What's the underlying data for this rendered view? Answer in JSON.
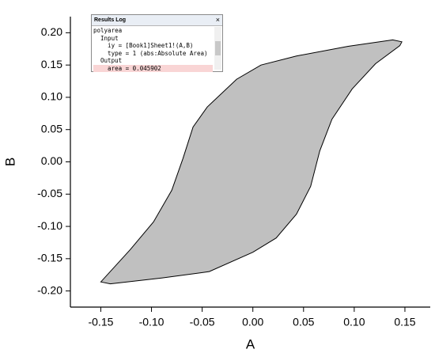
{
  "chart_data": {
    "type": "polygon",
    "x_label": "A",
    "y_label": "B",
    "x": [
      -0.15,
      -0.1406,
      -0.09,
      -0.043,
      0,
      0.023,
      0.043,
      0.057,
      0.066,
      0.078,
      0.098,
      0.121,
      0.145,
      0.147,
      0.138,
      0.094,
      0.043,
      0.008,
      -0.016,
      -0.045,
      -0.059,
      -0.069,
      -0.08,
      -0.098,
      -0.121
    ],
    "values": [
      -0.186,
      -0.189,
      -0.18,
      -0.17,
      -0.14,
      -0.118,
      -0.081,
      -0.038,
      0.017,
      0.066,
      0.113,
      0.152,
      0.18,
      0.186,
      0.189,
      0.179,
      0.164,
      0.15,
      0.128,
      0.085,
      0.054,
      0.005,
      -0.044,
      -0.093,
      -0.136
    ],
    "color": "#c0c0c0",
    "xlim": [
      -0.18,
      0.175
    ],
    "ylim": [
      -0.225,
      0.225
    ],
    "xticks": [
      -0.15,
      {
        "value": -0.1,
        "label": "-0.10"
      },
      -0.05,
      {
        "value": 0,
        "label": "0.00"
      },
      0.05,
      {
        "value": 0.1,
        "label": "0.10"
      },
      0.15
    ],
    "yticks": [
      {
        "value": -0.2,
        "label": "-0.20"
      },
      -0.15,
      {
        "value": -0.1,
        "label": "-0.10"
      },
      -0.05,
      {
        "value": 0,
        "label": "0.00"
      },
      0.05,
      {
        "value": 0.1,
        "label": "0.10"
      },
      0.15,
      {
        "value": 0.2,
        "label": "0.20"
      }
    ]
  },
  "results_log": {
    "title": "Results Log",
    "close": "×",
    "lines": [
      "polyarea",
      "  Input",
      "    iy = [Book1]Sheet1!(A,B)",
      "    type = 1 (abs:Absolute Area)",
      "  Output",
      "    area = 0.045902"
    ]
  }
}
